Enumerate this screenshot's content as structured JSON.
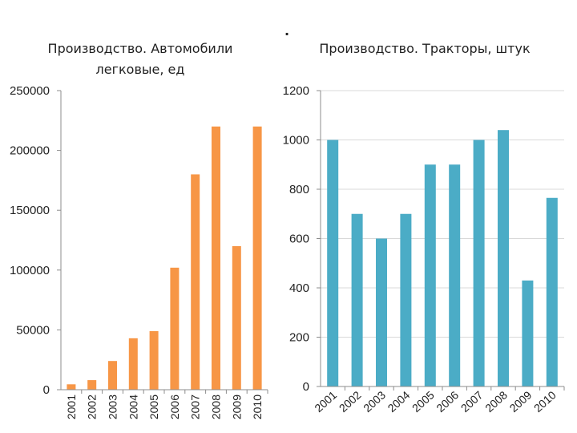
{
  "page": {
    "dot": "."
  },
  "colors": {
    "left": "#f79646",
    "right": "#4bacc6"
  },
  "chart_data": [
    {
      "type": "bar",
      "title_lines": [
        "Производство. Автомобили",
        "легковые, ед"
      ],
      "categories": [
        "2001",
        "2002",
        "2003",
        "2004",
        "2005",
        "2006",
        "2007",
        "2008",
        "2009",
        "2010"
      ],
      "values": [
        4500,
        8000,
        24000,
        43000,
        49000,
        102000,
        180000,
        220000,
        120000,
        220000
      ],
      "ylim": [
        0,
        250000
      ],
      "yticks": [
        0,
        50000,
        100000,
        150000,
        200000,
        250000
      ],
      "ytick_labels": [
        "0",
        "50000",
        "100000",
        "150000",
        "200000",
        "250000"
      ],
      "xlabel": "",
      "ylabel": "",
      "xlabel_orientation": "vertical",
      "grid": false
    },
    {
      "type": "bar",
      "title_lines": [
        "Производство. Тракторы, штук"
      ],
      "categories": [
        "2001",
        "2002",
        "2003",
        "2004",
        "2005",
        "2006",
        "2007",
        "2008",
        "2009",
        "2010"
      ],
      "values": [
        1000,
        700,
        600,
        700,
        900,
        900,
        1000,
        1040,
        430,
        765
      ],
      "ylim": [
        0,
        1200
      ],
      "yticks": [
        0,
        200,
        400,
        600,
        800,
        1000,
        1200
      ],
      "ytick_labels": [
        "0",
        "200",
        "400",
        "600",
        "800",
        "1000",
        "1200"
      ],
      "xlabel": "",
      "ylabel": "",
      "xlabel_orientation": "diagonal",
      "grid": true
    }
  ]
}
